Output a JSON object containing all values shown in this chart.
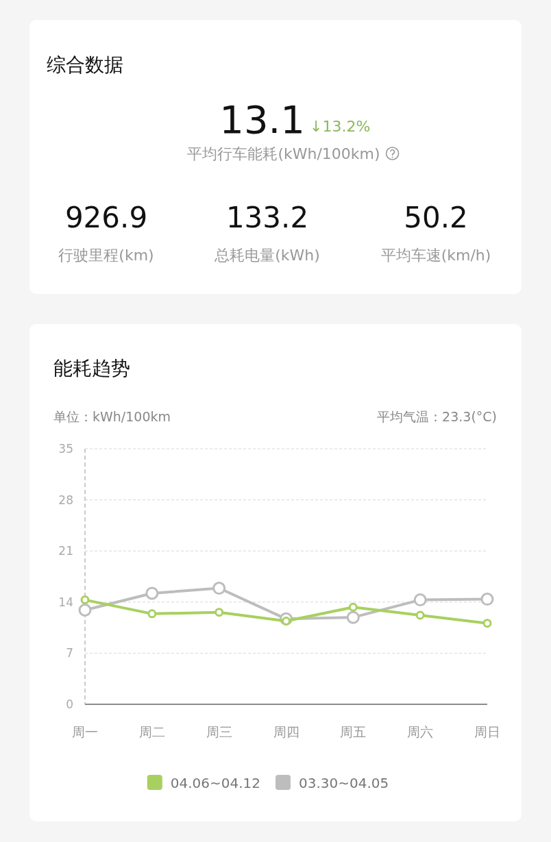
{
  "chart_data": [
    {
      "type": "other",
      "title": "综合数据",
      "annotations": [
        "13.1",
        "↓13.2%",
        "平均行车能耗(kWh/100km)",
        "926.9",
        "行驶里程(km)",
        "133.2",
        "总耗电量(kWh)",
        "50.2",
        "平均车速(km/h)"
      ]
    },
    {
      "type": "line",
      "title": "能耗趋势",
      "ylabel": "单位：kWh/100km",
      "annotations": [
        "平均气温：23.3(°C)"
      ],
      "categories": [
        "周一",
        "周二",
        "周三",
        "周四",
        "周五",
        "周六",
        "周日"
      ],
      "series": [
        {
          "name": "04.06~04.12",
          "color": "#a8d060",
          "values": [
            14.3,
            12.4,
            12.6,
            11.4,
            13.3,
            12.2,
            11.1
          ]
        },
        {
          "name": "03.30~04.05",
          "color": "#bdbdbd",
          "values": [
            12.9,
            15.2,
            15.9,
            11.7,
            11.9,
            14.3,
            14.4
          ]
        }
      ],
      "ylim": [
        0,
        35
      ],
      "yticks": [
        0,
        7,
        14,
        21,
        28,
        35
      ],
      "grid": "y",
      "legend": "bottom",
      "marker": "circle",
      "line_style": "solid"
    }
  ]
}
